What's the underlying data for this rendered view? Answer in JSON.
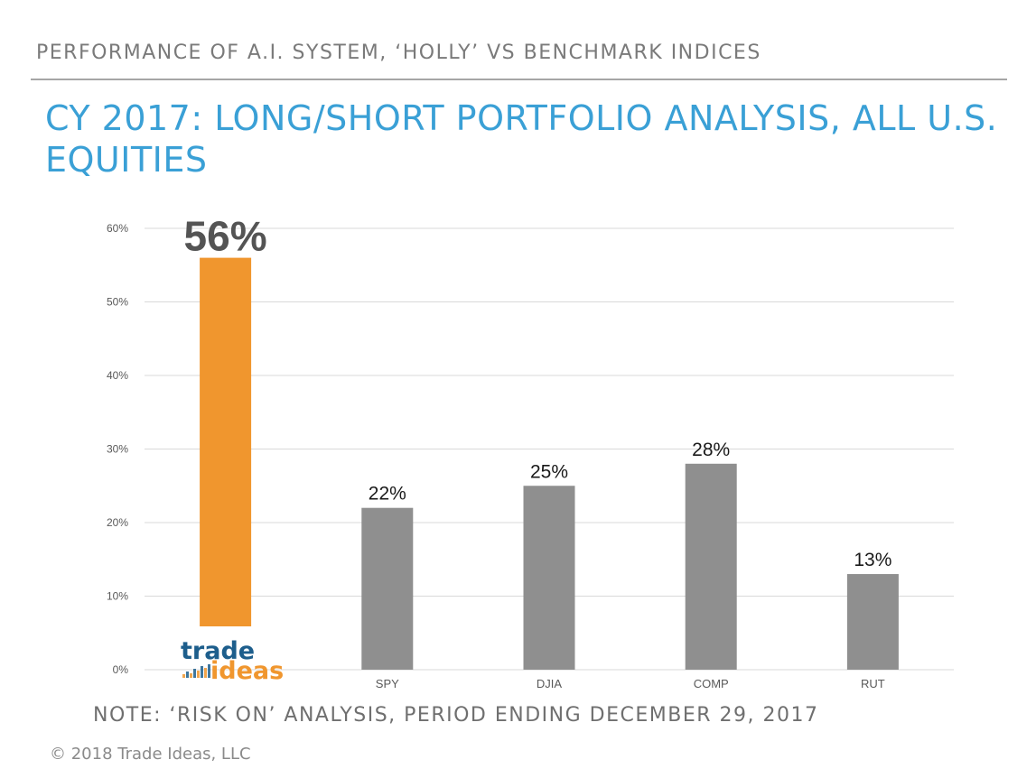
{
  "header": {
    "supertitle": "PERFORMANCE OF A.I. SYSTEM, ‘HOLLY’ VS BENCHMARK INDICES",
    "title": "CY 2017: LONG/SHORT PORTFOLIO ANALYSIS, ALL U.S. EQUITIES"
  },
  "chart_data": {
    "type": "bar",
    "categories": [
      "trade ideas",
      "SPY",
      "DJIA",
      "COMP",
      "RUT"
    ],
    "values": [
      56,
      22,
      25,
      28,
      13
    ],
    "data_labels": [
      "56%",
      "22%",
      "25%",
      "28%",
      "13%"
    ],
    "yticks": [
      "0%",
      "10%",
      "20%",
      "30%",
      "40%",
      "50%",
      "60%"
    ],
    "ylim": [
      0,
      60
    ],
    "title": "",
    "xlabel": "",
    "ylabel": "",
    "grid": true,
    "colors": {
      "highlight": "#f0962e",
      "bar": "#8f8f8f",
      "grid": "#d9d9d9"
    }
  },
  "logo": {
    "line1": "trade",
    "line2": "ideas",
    "colors": {
      "trade": "#1d5e8c",
      "ideas": "#f0962e"
    }
  },
  "footer": {
    "note": "NOTE: ‘RISK ON’ ANALYSIS, PERIOD ENDING DECEMBER 29, 2017",
    "copyright": "© 2018 Trade Ideas, LLC"
  }
}
